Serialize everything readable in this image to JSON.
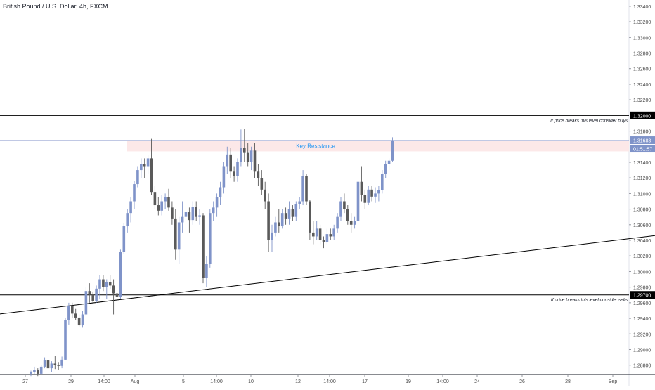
{
  "header": {
    "title": "British Pound / U.S. Dollar, 4h, FXCM"
  },
  "colors": {
    "bull": "#7f93c9",
    "bear": "#5a5a5a",
    "wick": "#6b6b6b",
    "zone": "#fce8e8",
    "zone_text": "#2196f3",
    "line": "#000000",
    "axis_text": "#4a4a4a",
    "price_line": "#9aa7d4",
    "current_bg": "#7f93c9",
    "countdown_bg": "#7f93c9"
  },
  "chart_data": {
    "type": "candlestick",
    "ylim": [
      1.2868,
      1.3348
    ],
    "y_ticks": [
      "1.33400",
      "1.33200",
      "1.33000",
      "1.32800",
      "1.32600",
      "1.32400",
      "1.32200",
      "1.31800",
      "1.31400",
      "1.31200",
      "1.31000",
      "1.30800",
      "1.30600",
      "1.30400",
      "1.30200",
      "1.30000",
      "1.29800",
      "1.29600",
      "1.29400",
      "1.29200",
      "1.29000",
      "1.28800"
    ],
    "y_tick_values": [
      1.334,
      1.332,
      1.33,
      1.328,
      1.326,
      1.324,
      1.322,
      1.318,
      1.314,
      1.312,
      1.31,
      1.308,
      1.306,
      1.304,
      1.302,
      1.3,
      1.298,
      1.296,
      1.294,
      1.292,
      1.29,
      1.288
    ],
    "x_labels": [
      "27",
      "29",
      "14:00",
      "Aug",
      "5",
      "14:00",
      "10",
      "12",
      "14:00",
      "17",
      "19",
      "14:00",
      "24",
      "26",
      "28",
      "Sep"
    ],
    "resistance_level": {
      "value": 1.32,
      "label": "1.32000",
      "note": "If price breaks this level consider buys"
    },
    "support_level": {
      "value": 1.297,
      "label": "1.29700",
      "note": "If price breaks this level consider sells"
    },
    "zone": {
      "top": 1.3168,
      "bottom": 1.3154,
      "label": "Key Resistance"
    },
    "current_price": {
      "value": 1.31683,
      "label": "1.31683",
      "countdown": "01:51:57"
    },
    "trendline": {
      "start": {
        "index": -10,
        "price": 1.2945
      },
      "end": {
        "index": 200,
        "price": 1.3056
      }
    },
    "candles": [
      [
        1.2869,
        1.2873,
        1.2866,
        1.2871
      ],
      [
        1.2871,
        1.2878,
        1.2869,
        1.2874
      ],
      [
        1.2874,
        1.2876,
        1.2866,
        1.2869
      ],
      [
        1.2869,
        1.288,
        1.2867,
        1.2878
      ],
      [
        1.2878,
        1.289,
        1.2876,
        1.2886
      ],
      [
        1.2886,
        1.2889,
        1.2873,
        1.2876
      ],
      [
        1.2876,
        1.2885,
        1.2871,
        1.2882
      ],
      [
        1.2882,
        1.2892,
        1.2875,
        1.288
      ],
      [
        1.288,
        1.2884,
        1.2874,
        1.2879
      ],
      [
        1.2879,
        1.2891,
        1.2876,
        1.2887
      ],
      [
        1.2887,
        1.294,
        1.2886,
        1.2938
      ],
      [
        1.2938,
        1.296,
        1.2932,
        1.2956
      ],
      [
        1.2956,
        1.296,
        1.294,
        1.2946
      ],
      [
        1.2946,
        1.2952,
        1.2938,
        1.2941
      ],
      [
        1.2941,
        1.2945,
        1.2929,
        1.2931
      ],
      [
        1.2931,
        1.295,
        1.2928,
        1.2945
      ],
      [
        1.2945,
        1.298,
        1.2943,
        1.2975
      ],
      [
        1.2975,
        1.2985,
        1.296,
        1.297
      ],
      [
        1.297,
        1.2974,
        1.2958,
        1.2962
      ],
      [
        1.2962,
        1.2982,
        1.296,
        1.2978
      ],
      [
        1.2978,
        1.2995,
        1.2965,
        1.299
      ],
      [
        1.299,
        1.2995,
        1.2975,
        1.298
      ],
      [
        1.298,
        1.299,
        1.2965,
        1.2986
      ],
      [
        1.2986,
        1.2995,
        1.2978,
        1.2982
      ],
      [
        1.2982,
        1.299,
        1.2945,
        1.2972
      ],
      [
        1.2972,
        1.2975,
        1.296,
        1.2968
      ],
      [
        1.2968,
        1.3028,
        1.2965,
        1.3025
      ],
      [
        1.3025,
        1.3062,
        1.3022,
        1.3058
      ],
      [
        1.3058,
        1.308,
        1.305,
        1.3075
      ],
      [
        1.3075,
        1.3095,
        1.3063,
        1.309
      ],
      [
        1.309,
        1.3116,
        1.308,
        1.3112
      ],
      [
        1.3112,
        1.3135,
        1.3108,
        1.313
      ],
      [
        1.313,
        1.3145,
        1.312,
        1.3138
      ],
      [
        1.3138,
        1.3145,
        1.312,
        1.3135
      ],
      [
        1.3135,
        1.315,
        1.3125,
        1.3145
      ],
      [
        1.3145,
        1.317,
        1.3098,
        1.3102
      ],
      [
        1.3102,
        1.311,
        1.308,
        1.3085
      ],
      [
        1.3085,
        1.3095,
        1.3072,
        1.3078
      ],
      [
        1.3078,
        1.3098,
        1.3072,
        1.309
      ],
      [
        1.309,
        1.31,
        1.308,
        1.3095
      ],
      [
        1.3095,
        1.3106,
        1.3078,
        1.3082
      ],
      [
        1.3082,
        1.309,
        1.306,
        1.3068
      ],
      [
        1.3068,
        1.308,
        1.3015,
        1.3028
      ],
      [
        1.3028,
        1.307,
        1.301,
        1.3063
      ],
      [
        1.3063,
        1.309,
        1.305,
        1.307
      ],
      [
        1.307,
        1.3085,
        1.306,
        1.3076
      ],
      [
        1.3076,
        1.3082,
        1.305,
        1.3066
      ],
      [
        1.3066,
        1.309,
        1.306,
        1.3083
      ],
      [
        1.3083,
        1.309,
        1.3065,
        1.307
      ],
      [
        1.307,
        1.308,
        1.306,
        1.3072
      ],
      [
        1.3072,
        1.3075,
        1.2985,
        1.2992
      ],
      [
        1.2992,
        1.302,
        1.298,
        1.301
      ],
      [
        1.301,
        1.308,
        1.3005,
        1.3075
      ],
      [
        1.3075,
        1.309,
        1.3065,
        1.3082
      ],
      [
        1.3082,
        1.31,
        1.307,
        1.3095
      ],
      [
        1.3095,
        1.3115,
        1.3085,
        1.3108
      ],
      [
        1.3108,
        1.314,
        1.31,
        1.3135
      ],
      [
        1.3135,
        1.316,
        1.3125,
        1.315
      ],
      [
        1.315,
        1.3158,
        1.312,
        1.3128
      ],
      [
        1.3128,
        1.3135,
        1.3115,
        1.3122
      ],
      [
        1.3122,
        1.3145,
        1.3115,
        1.314
      ],
      [
        1.314,
        1.3182,
        1.3135,
        1.3158
      ],
      [
        1.3158,
        1.3183,
        1.314,
        1.3152
      ],
      [
        1.3152,
        1.3165,
        1.3135,
        1.314
      ],
      [
        1.314,
        1.316,
        1.313,
        1.3155
      ],
      [
        1.3155,
        1.3165,
        1.312,
        1.3128
      ],
      [
        1.3128,
        1.3138,
        1.311,
        1.312
      ],
      [
        1.312,
        1.313,
        1.3098,
        1.3105
      ],
      [
        1.3105,
        1.3115,
        1.308,
        1.309
      ],
      [
        1.309,
        1.31,
        1.3025,
        1.304
      ],
      [
        1.304,
        1.306,
        1.3025,
        1.305
      ],
      [
        1.305,
        1.307,
        1.3045,
        1.3063
      ],
      [
        1.3063,
        1.308,
        1.305,
        1.3058
      ],
      [
        1.3058,
        1.308,
        1.3055,
        1.3075
      ],
      [
        1.3075,
        1.3082,
        1.306,
        1.3068
      ],
      [
        1.3068,
        1.309,
        1.306,
        1.308
      ],
      [
        1.308,
        1.3085,
        1.3065,
        1.307
      ],
      [
        1.307,
        1.309,
        1.3065,
        1.3086
      ],
      [
        1.3086,
        1.3095,
        1.308,
        1.309
      ],
      [
        1.309,
        1.313,
        1.3085,
        1.3122
      ],
      [
        1.3122,
        1.3125,
        1.3085,
        1.309
      ],
      [
        1.309,
        1.3092,
        1.304,
        1.305
      ],
      [
        1.305,
        1.3065,
        1.3035,
        1.3045
      ],
      [
        1.3045,
        1.3065,
        1.304,
        1.3055
      ],
      [
        1.3055,
        1.306,
        1.3035,
        1.304
      ],
      [
        1.304,
        1.3045,
        1.303,
        1.3038
      ],
      [
        1.3038,
        1.3055,
        1.3035,
        1.3048
      ],
      [
        1.3048,
        1.3055,
        1.304,
        1.3045
      ],
      [
        1.3045,
        1.306,
        1.304,
        1.3055
      ],
      [
        1.3055,
        1.3075,
        1.305,
        1.307
      ],
      [
        1.307,
        1.3095,
        1.3065,
        1.309
      ],
      [
        1.309,
        1.31,
        1.3075,
        1.308
      ],
      [
        1.308,
        1.3085,
        1.306,
        1.3065
      ],
      [
        1.3065,
        1.3075,
        1.305,
        1.306
      ],
      [
        1.306,
        1.307,
        1.3055,
        1.3065
      ],
      [
        1.3065,
        1.312,
        1.306,
        1.3115
      ],
      [
        1.3115,
        1.3135,
        1.309,
        1.3098
      ],
      [
        1.3098,
        1.3105,
        1.308,
        1.3088
      ],
      [
        1.3088,
        1.311,
        1.3085,
        1.3105
      ],
      [
        1.3105,
        1.311,
        1.309,
        1.3096
      ],
      [
        1.3096,
        1.3108,
        1.3088,
        1.31
      ],
      [
        1.31,
        1.311,
        1.309,
        1.3104
      ],
      [
        1.3104,
        1.313,
        1.31,
        1.3125
      ],
      [
        1.3125,
        1.3142,
        1.312,
        1.3138
      ],
      [
        1.3138,
        1.3145,
        1.313,
        1.3142
      ],
      [
        1.3142,
        1.3172,
        1.314,
        1.3168
      ]
    ]
  }
}
